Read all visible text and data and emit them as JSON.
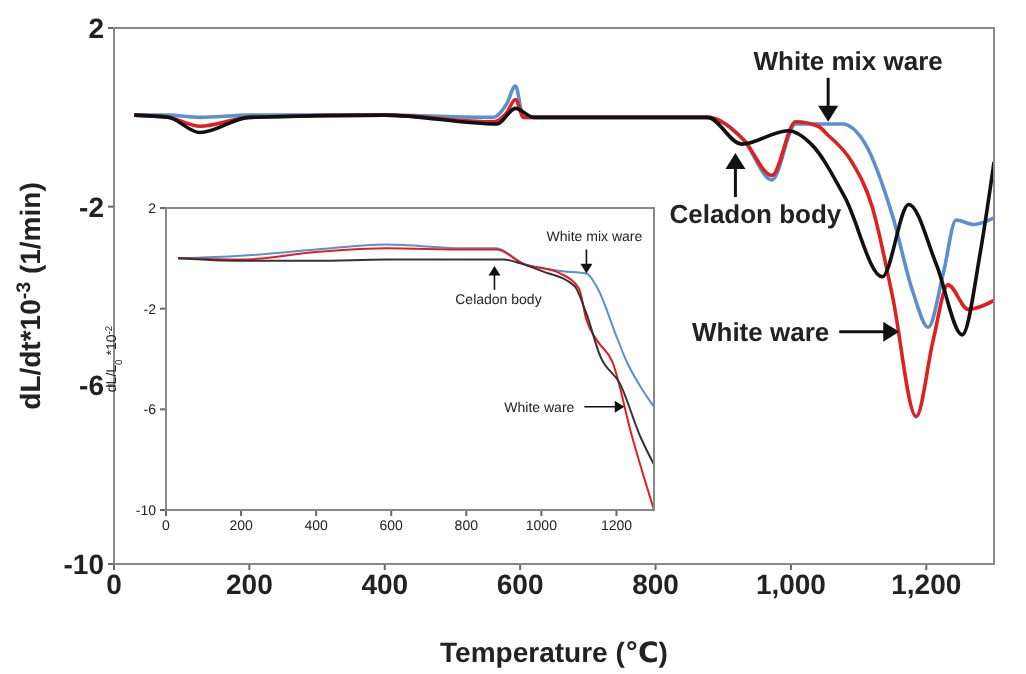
{
  "chart_data": [
    {
      "type": "line",
      "xlabel": "Temperature (℃)",
      "ylabel": "dL/dt*10$^{-3}$(1/min)",
      "xlim": [
        0,
        1300
      ],
      "ylim": [
        -10,
        2
      ],
      "xticks": [
        0,
        200,
        400,
        600,
        {
          "value": 800,
          "label": "800"
        },
        {
          "value": 1000,
          "label": "1,000"
        },
        {
          "value": 1200,
          "label": "1,200"
        }
      ],
      "yticks": [
        2,
        -2,
        -6,
        -10
      ],
      "grid": false,
      "marker": "none",
      "line_style": "solid",
      "annotations": [
        {
          "text": "White mix ware",
          "x": 1055,
          "y": -0.1
        },
        {
          "text": "Celadon body",
          "x": 918,
          "y": -0.8
        },
        {
          "text": "White ware",
          "x": 1160,
          "y": -4.8
        }
      ],
      "series": [
        {
          "color": "#5b8fd0",
          "x": [
            30,
            80,
            127,
            200,
            400,
            560,
            580,
            593,
            605,
            650,
            877,
            930,
            972,
            1007,
            1076,
            1110,
            1150,
            1180,
            1203,
            1225,
            1244,
            1270,
            1300
          ],
          "values": [
            0.05,
            0.05,
            0,
            0.05,
            0.05,
            0,
            0.3,
            0.7,
            0,
            0,
            0,
            -0.5,
            -1.4,
            -0.15,
            -0.15,
            -0.6,
            -2.2,
            -3.9,
            -4.7,
            -3.5,
            -2.3,
            -2.4,
            -2.25
          ]
        },
        {
          "color": "#e02020",
          "x": [
            30,
            80,
            127,
            200,
            400,
            560,
            580,
            593,
            605,
            650,
            877,
            930,
            972,
            1007,
            1040,
            1055,
            1090,
            1120,
            1150,
            1185,
            1210,
            1232,
            1262,
            1300
          ],
          "values": [
            0.05,
            0,
            -0.2,
            0,
            0.05,
            -0.1,
            0.1,
            0.4,
            0,
            0,
            0,
            -0.5,
            -1.3,
            -0.1,
            -0.2,
            -0.4,
            -1.0,
            -2.0,
            -4.0,
            -6.7,
            -5.0,
            -3.75,
            -4.3,
            -4.1
          ]
        },
        {
          "color": "#111111",
          "x": [
            30,
            80,
            127,
            200,
            400,
            566,
            593,
            620,
            877,
            927,
            996,
            1030,
            1080,
            1135,
            1174,
            1215,
            1253,
            1280,
            1300
          ],
          "values": [
            0.05,
            0,
            -0.34,
            0,
            0.05,
            -0.15,
            0.2,
            0,
            0,
            -0.6,
            -0.3,
            -0.6,
            -1.8,
            -3.57,
            -1.95,
            -3.3,
            -4.87,
            -3.0,
            -1.0
          ]
        }
      ]
    },
    {
      "type": "line",
      "ylabel": "dL/L$_{0}$*10$^{-2}$",
      "xlim": [
        0,
        1300
      ],
      "ylim": [
        -10,
        2
      ],
      "xticks": [
        0,
        200,
        400,
        600,
        800,
        1000,
        1200
      ],
      "yticks": [
        2,
        -2,
        -6,
        -10
      ],
      "grid": false,
      "marker": "none",
      "line_style": "solid",
      "annotations": [
        {
          "text": "White mix ware",
          "x": 1120,
          "y": -0.6
        },
        {
          "text": "Celadon body",
          "x": 875,
          "y": -0.3
        },
        {
          "text": "White ware",
          "x": 1221,
          "y": -5.9
        }
      ],
      "series": [
        {
          "color": "#5b8fd0",
          "x": [
            32,
            200,
            400,
            587,
            800,
            880,
            950,
            1050,
            1120,
            1150,
            1200,
            1227,
            1260,
            1300
          ],
          "values": [
            0,
            0.1,
            0.35,
            0.55,
            0.4,
            0.4,
            -0.2,
            -0.5,
            -0.6,
            -1.2,
            -3.1,
            -4.1,
            -5.0,
            -5.9
          ]
        },
        {
          "color": "#e02020",
          "x": [
            32,
            200,
            400,
            587,
            800,
            880,
            950,
            1050,
            1100,
            1120,
            1150,
            1189,
            1240,
            1300
          ],
          "values": [
            0,
            -0.05,
            0.25,
            0.4,
            0.35,
            0.35,
            -0.2,
            -0.6,
            -1.2,
            -2.45,
            -3.3,
            -4.1,
            -7.0,
            -10
          ]
        },
        {
          "color": "#333333",
          "x": [
            32,
            200,
            400,
            587,
            800,
            900,
            944,
            1000,
            1088,
            1120,
            1157,
            1210,
            1264,
            1300
          ],
          "values": [
            0,
            -0.1,
            -0.1,
            -0.05,
            -0.05,
            -0.05,
            -0.2,
            -0.5,
            -1.1,
            -2.2,
            -3.9,
            -5.0,
            -7.1,
            -8.2
          ]
        }
      ]
    }
  ]
}
